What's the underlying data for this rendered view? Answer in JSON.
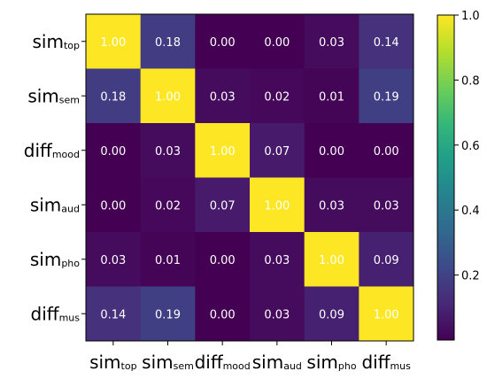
{
  "chart_data": {
    "type": "heatmap",
    "labels": [
      {
        "main": "sim",
        "sub": "top"
      },
      {
        "main": "sim",
        "sub": "sem"
      },
      {
        "main": "diff",
        "sub": "mood"
      },
      {
        "main": "sim",
        "sub": "aud"
      },
      {
        "main": "sim",
        "sub": "pho"
      },
      {
        "main": "diff",
        "sub": "mus"
      }
    ],
    "matrix": [
      [
        "1.00",
        "0.18",
        "0.00",
        "0.00",
        "0.03",
        "0.14"
      ],
      [
        "0.18",
        "1.00",
        "0.03",
        "0.02",
        "0.01",
        "0.19"
      ],
      [
        "0.00",
        "0.03",
        "1.00",
        "0.07",
        "0.00",
        "0.00"
      ],
      [
        "0.00",
        "0.02",
        "0.07",
        "1.00",
        "0.03",
        "0.03"
      ],
      [
        "0.03",
        "0.01",
        "0.00",
        "0.03",
        "1.00",
        "0.09"
      ],
      [
        "0.14",
        "0.19",
        "0.00",
        "0.03",
        "0.09",
        "1.00"
      ]
    ],
    "colorbar": {
      "min": 0.0,
      "max": 1.0,
      "ticks": [
        "0.2",
        "0.4",
        "0.6",
        "0.8",
        "1.0"
      ]
    },
    "colormap": [
      "#440154",
      "#482878",
      "#3e4989",
      "#31688e",
      "#26828e",
      "#1f9e89",
      "#35b779",
      "#6ece58",
      "#b5de2b",
      "#fde725"
    ],
    "title": "",
    "xlabel": "",
    "ylabel": ""
  }
}
